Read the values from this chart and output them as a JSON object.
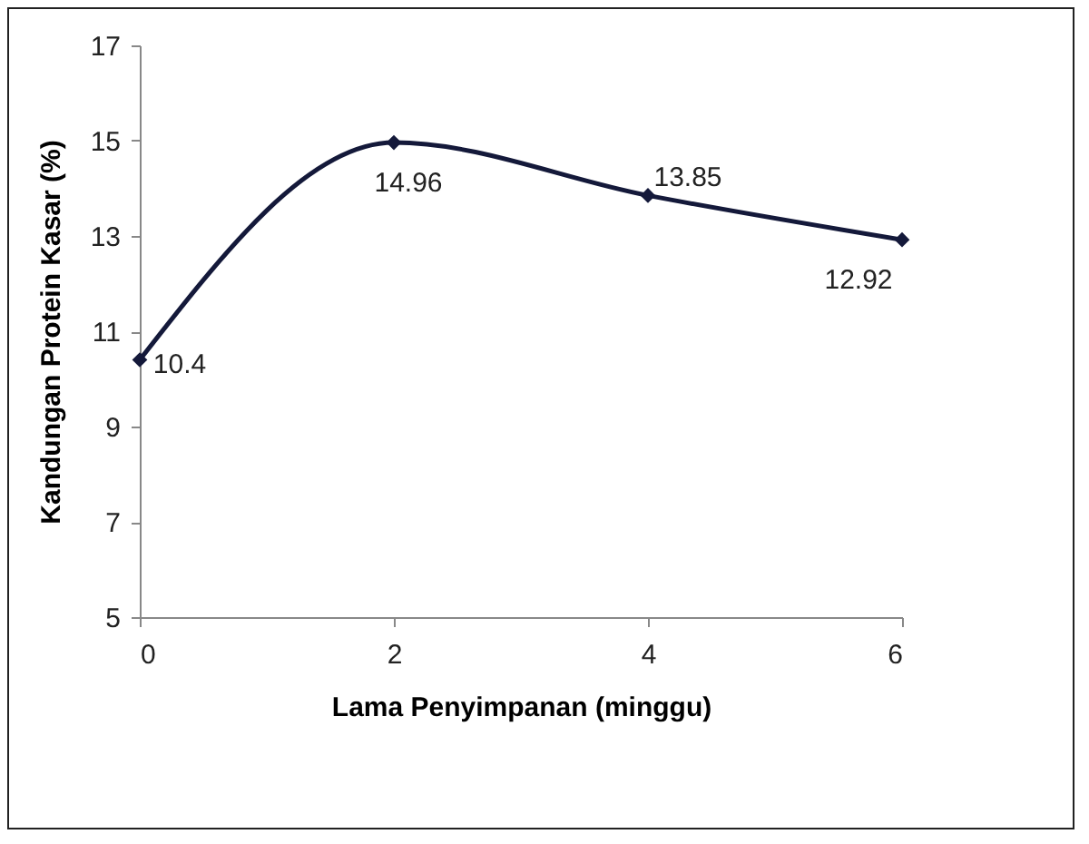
{
  "chart_data": {
    "type": "line",
    "xlabel": "Lama Penyimpanan (minggu)",
    "ylabel": "Kandungan Protein Kasar (%)",
    "x": [
      0,
      2,
      4,
      6
    ],
    "series": [
      {
        "color": "#14193a",
        "values": [
          10.4,
          14.96,
          13.85,
          12.92
        ]
      }
    ],
    "xlim": [
      0,
      6
    ],
    "xticks": [
      0,
      2,
      4,
      6
    ],
    "ylim": [
      5,
      17
    ],
    "yticks": [
      5,
      7,
      9,
      11,
      13,
      15,
      17
    ],
    "data_labels": true,
    "marker": "diamond",
    "line_style": "solid",
    "grid": false
  }
}
